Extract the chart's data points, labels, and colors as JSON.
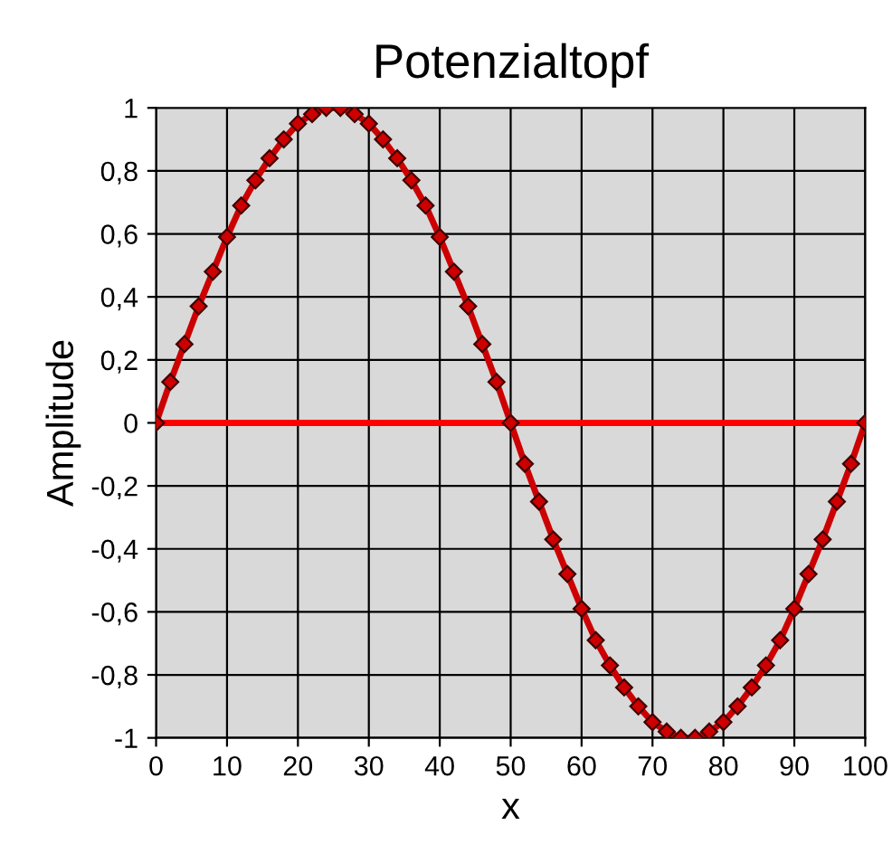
{
  "chart_data": {
    "type": "line",
    "title": "Potenzialtopf",
    "xlabel": "x",
    "ylabel": "Amplitude",
    "xlim": [
      0,
      100
    ],
    "xticks": [
      0,
      10,
      20,
      30,
      40,
      50,
      60,
      70,
      80,
      90,
      100
    ],
    "ylim": [
      -1,
      1
    ],
    "yticks": [
      {
        "value": -1,
        "label": "-1"
      },
      {
        "value": -0.8,
        "label": "-0,8"
      },
      {
        "value": -0.6,
        "label": "-0,6"
      },
      {
        "value": -0.4,
        "label": "-0,4"
      },
      {
        "value": -0.2,
        "label": "-0,2"
      },
      0,
      {
        "value": 0.2,
        "label": "0,2"
      },
      {
        "value": 0.4,
        "label": "0,4"
      },
      {
        "value": 0.6,
        "label": "0,6"
      },
      {
        "value": 0.8,
        "label": "0,8"
      },
      1
    ],
    "grid": true,
    "series": [
      {
        "color": "#cc0000",
        "marker": "diamond",
        "x": [
          0,
          2,
          4,
          6,
          8,
          10,
          12,
          14,
          16,
          18,
          20,
          22,
          24,
          26,
          28,
          30,
          32,
          34,
          36,
          38,
          40,
          42,
          44,
          46,
          48,
          50,
          52,
          54,
          56,
          58,
          60,
          62,
          64,
          66,
          68,
          70,
          72,
          74,
          76,
          78,
          80,
          82,
          84,
          86,
          88,
          90,
          92,
          94,
          96,
          98,
          100
        ],
        "values": [
          0,
          0.13,
          0.25,
          0.37,
          0.48,
          0.59,
          0.69,
          0.77,
          0.84,
          0.9,
          0.95,
          0.98,
          1,
          1,
          0.98,
          0.95,
          0.9,
          0.84,
          0.77,
          0.69,
          0.59,
          0.48,
          0.37,
          0.25,
          0.13,
          0,
          -0.13,
          -0.25,
          -0.37,
          -0.48,
          -0.59,
          -0.69,
          -0.77,
          -0.84,
          -0.9,
          -0.95,
          -0.98,
          -1,
          -1,
          -0.98,
          -0.95,
          -0.9,
          -0.84,
          -0.77,
          -0.69,
          -0.59,
          -0.48,
          -0.37,
          -0.25,
          -0.13,
          0
        ]
      },
      {
        "color": "#ff0000",
        "marker": "none",
        "x": [
          0,
          100
        ],
        "values": [
          0,
          0
        ]
      }
    ]
  }
}
